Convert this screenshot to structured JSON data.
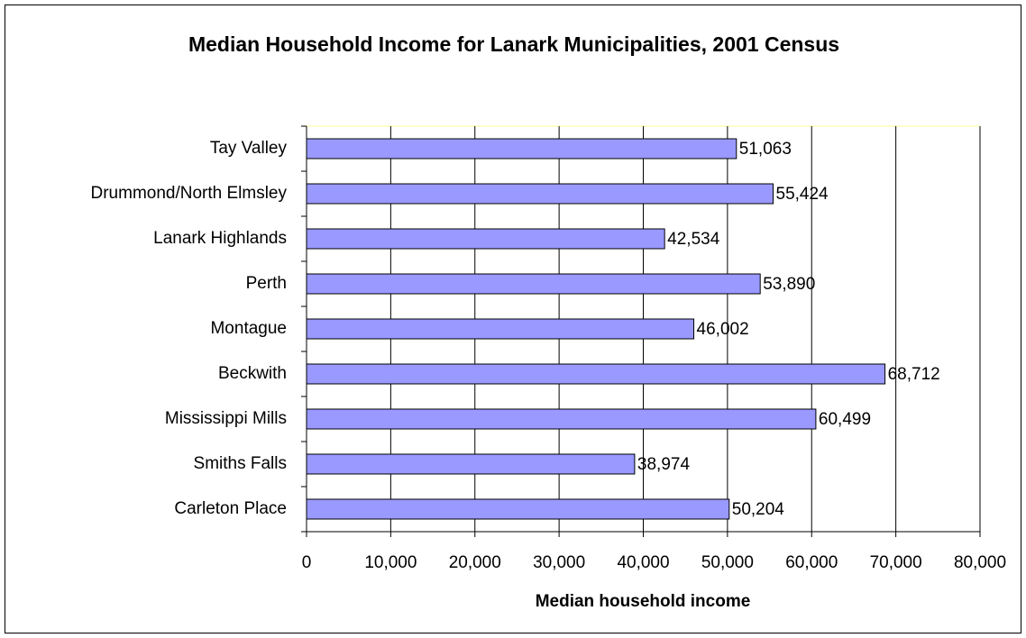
{
  "chart_data": {
    "type": "bar",
    "orientation": "horizontal",
    "title": "Median Household Income for Lanark Municipalities, 2001 Census",
    "x_label": "Median household income",
    "categories": [
      "Tay Valley",
      "Drummond/North Elmsley",
      "Lanark Highlands",
      "Perth",
      "Montague",
      "Beckwith",
      "Mississippi Mills",
      "Smiths Falls",
      "Carleton Place"
    ],
    "values": [
      51063,
      55424,
      42534,
      53890,
      46002,
      68712,
      60499,
      38974,
      50204
    ],
    "value_labels": [
      "51,063",
      "55,424",
      "42,534",
      "53,890",
      "46,002",
      "68,712",
      "60,499",
      "38,974",
      "50,204"
    ],
    "color": "#9999ff",
    "xlim": [
      0,
      80000
    ],
    "xticks": [
      0,
      {
        "value": 10000,
        "label": "10,000"
      },
      {
        "value": 20000,
        "label": "20,000"
      },
      {
        "value": 30000,
        "label": "30,000"
      },
      {
        "value": 40000,
        "label": "40,000"
      },
      {
        "value": 50000,
        "label": "50,000"
      },
      {
        "value": 60000,
        "label": "60,000"
      },
      {
        "value": 70000,
        "label": "70,000"
      },
      {
        "value": 80000,
        "label": "80,000"
      }
    ],
    "grid": true
  }
}
